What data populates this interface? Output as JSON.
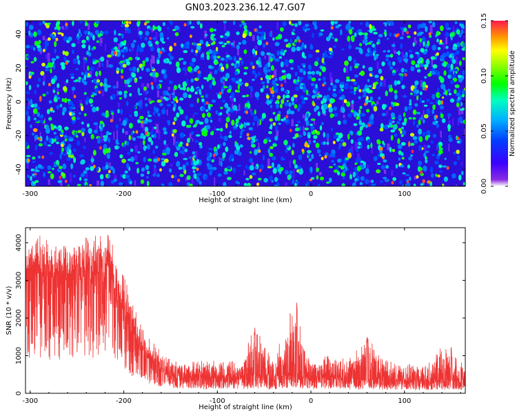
{
  "title": "GN03.2023.236.12.47.G07",
  "chart_data": [
    {
      "type": "heatmap",
      "xlabel": "Height of straight line (km)",
      "ylabel": "Frequency (Hz)",
      "xlim": [
        -305,
        165
      ],
      "ylim": [
        -50,
        48
      ],
      "xticks": [
        -300,
        -200,
        -100,
        0,
        100
      ],
      "yticks": [
        -40,
        -20,
        0,
        20,
        40
      ],
      "colorbar": {
        "label": "Normalized spectral amplitude",
        "range": [
          0,
          0.15
        ],
        "ticks": [
          "0.00",
          "0.05",
          "0.10",
          "0.15"
        ],
        "colormap": "rainbow: violet-blue-cyan-green-yellow-orange-red"
      },
      "description": "Dense speckled spectrogram of low amplitudes (mostly 0.03-0.08) with scattered yellow/red spots up to ~0.13 uniformly across the height range"
    },
    {
      "type": "line",
      "xlabel": "Height of straight line (km)",
      "ylabel": "SNR (10 * v/v)",
      "xlim": [
        -305,
        165
      ],
      "ylim": [
        0,
        4400
      ],
      "xticks": [
        -300,
        -200,
        -100,
        0,
        100
      ],
      "yticks": [
        0,
        1000,
        2000,
        3000,
        4000
      ],
      "color": "#ee3333",
      "series": [
        {
          "name": "",
          "x": [
            -305,
            -290,
            -270,
            -250,
            -230,
            -215,
            -205,
            -195,
            -185,
            -175,
            -165,
            -160,
            -150,
            -130,
            -110,
            -90,
            -75,
            -60,
            -40,
            -20,
            0,
            20,
            40,
            60,
            80,
            100,
            120,
            140,
            160,
            165
          ],
          "y_mean": [
            2800,
            3000,
            2900,
            2900,
            3000,
            2900,
            2200,
            1700,
            1200,
            900,
            700,
            550,
            450,
            400,
            350,
            400,
            350,
            400,
            350,
            450,
            350,
            400,
            300,
            350,
            300,
            300,
            300,
            300,
            300,
            280
          ],
          "y_peak": [
            3700,
            4200,
            3900,
            4050,
            4350,
            4250,
            3450,
            2800,
            2000,
            1500,
            1300,
            1050,
            900,
            900,
            850,
            900,
            800,
            1800,
            800,
            2500,
            900,
            1000,
            900,
            1550,
            900,
            800,
            750,
            1250,
            900,
            700
          ]
        }
      ],
      "annotations": "Notable spikes near -60 km (~1800), -15 km (~2500), 60 km (~1550), 150 km (~1250)"
    }
  ]
}
